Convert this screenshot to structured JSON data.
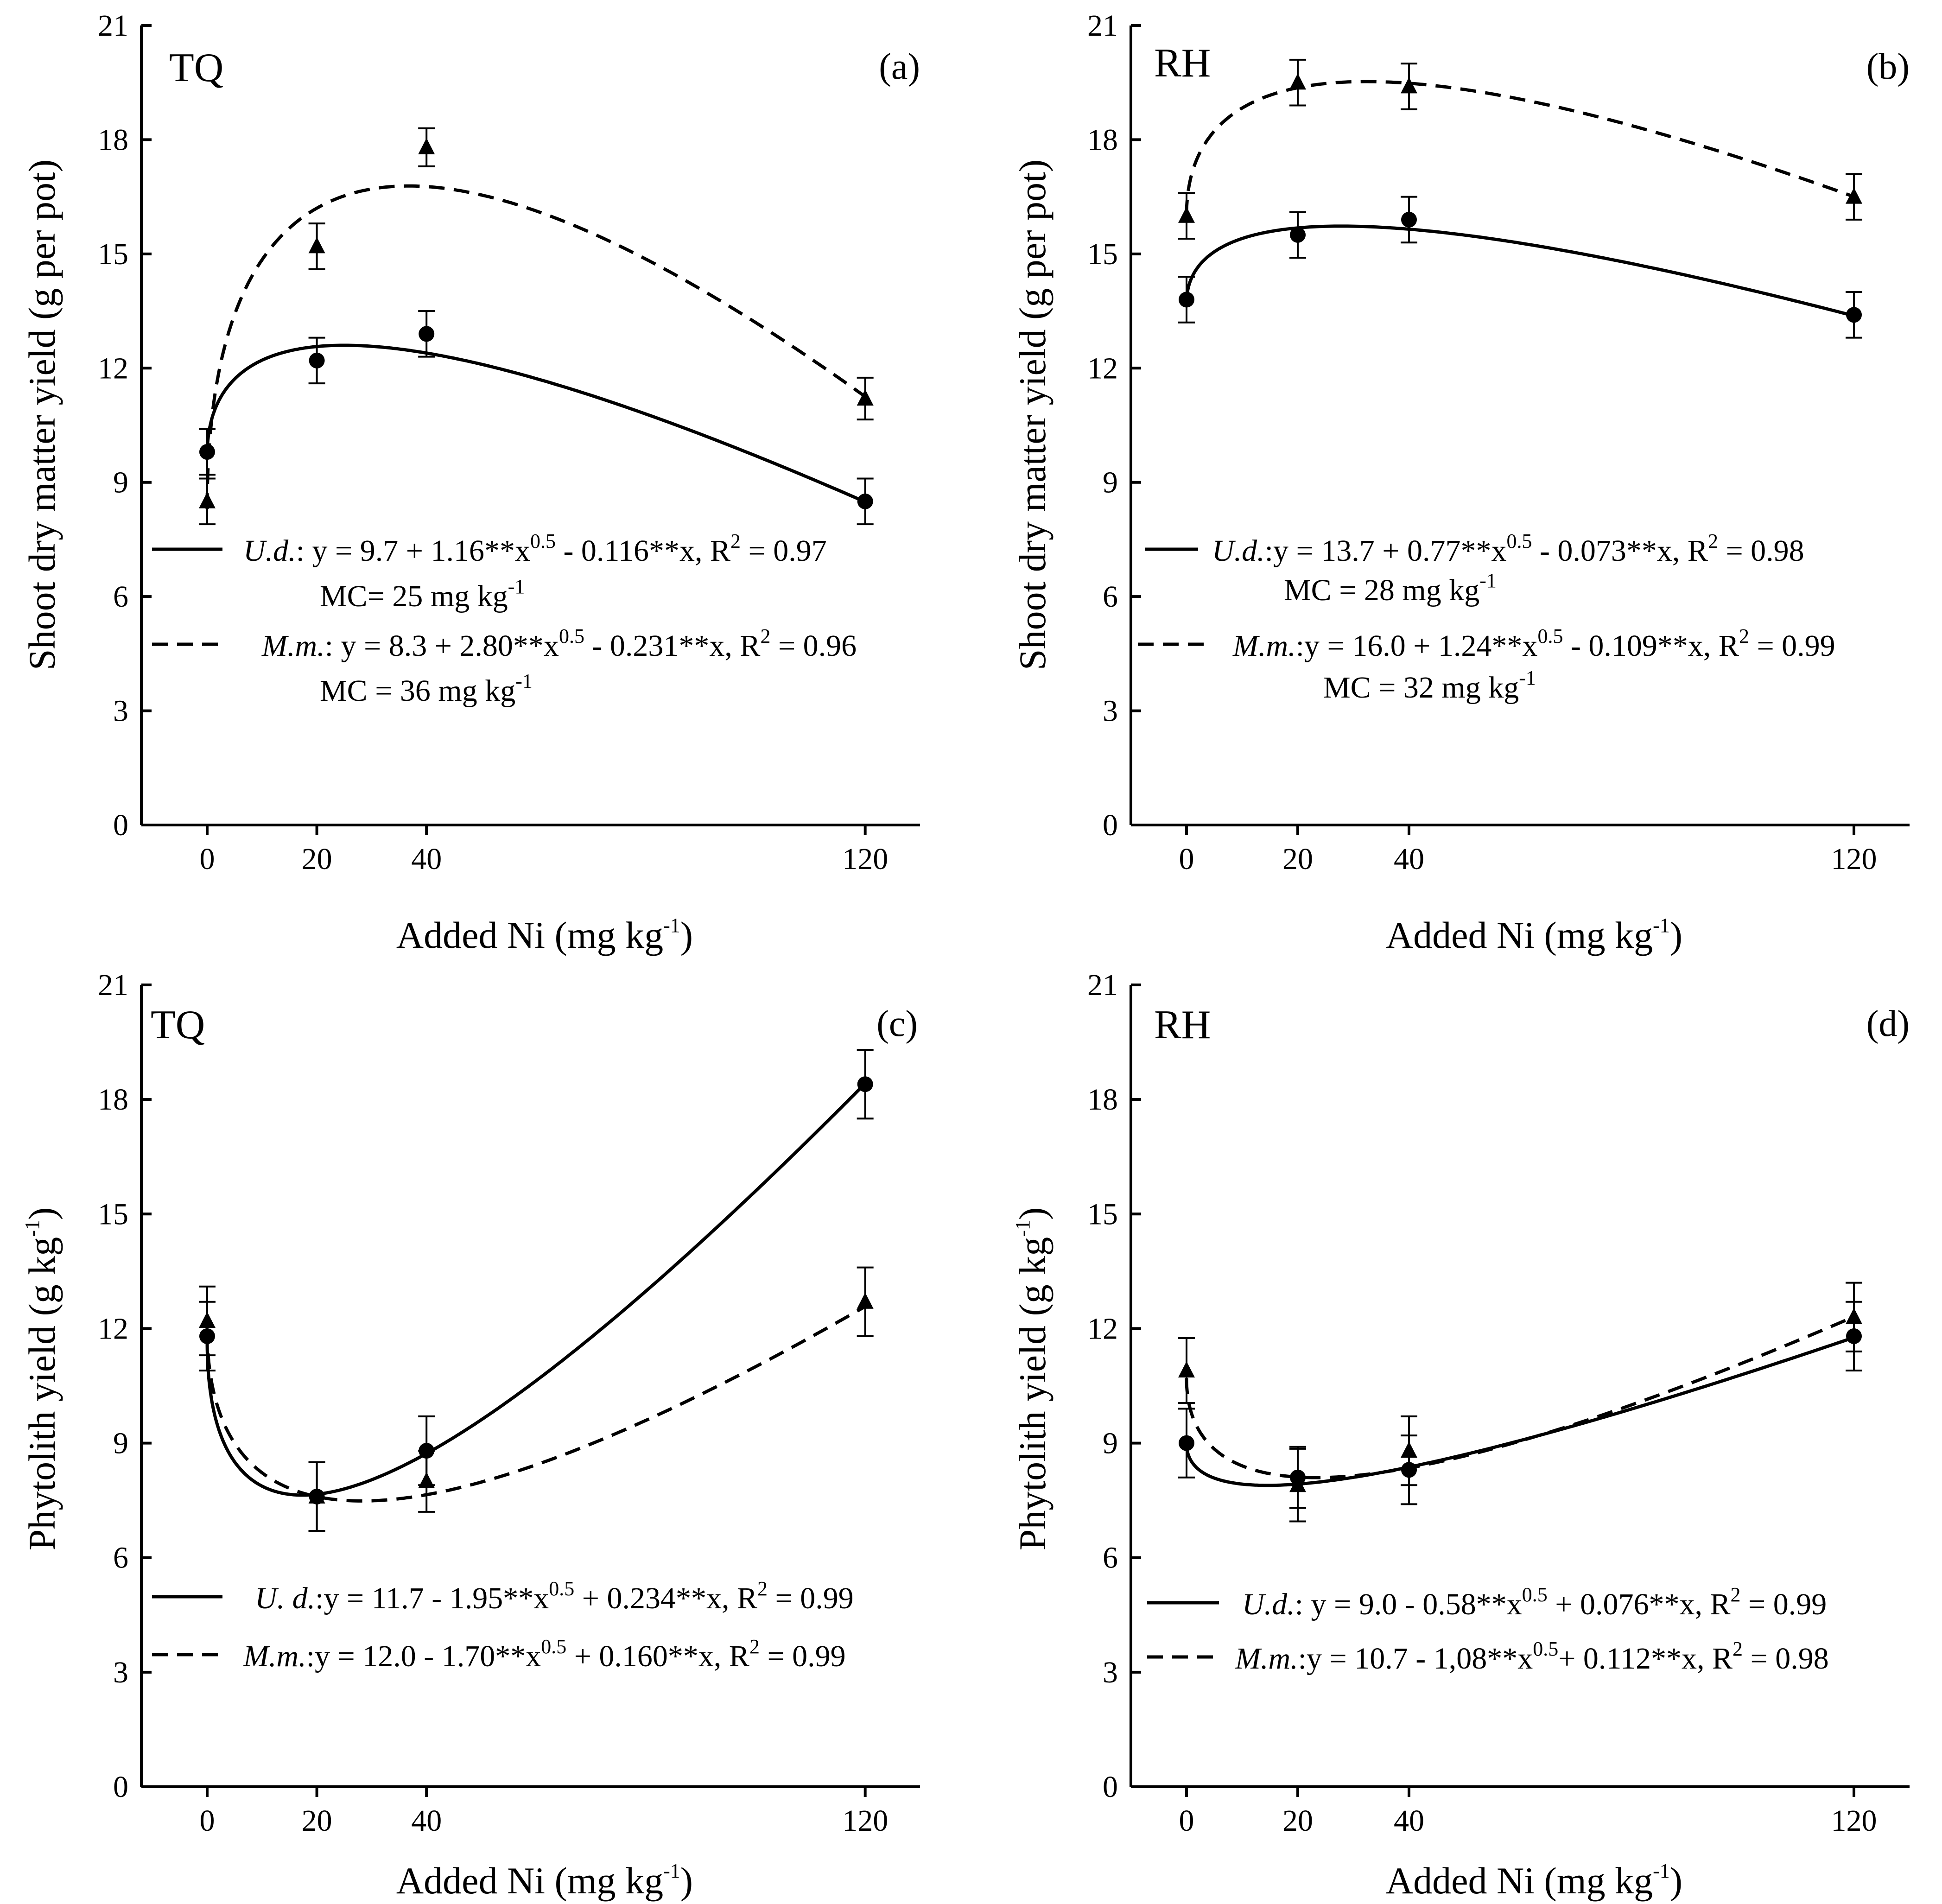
{
  "figure": {
    "panels": [
      {
        "id": "a",
        "panel_label": "(a)",
        "site_label": "TQ",
        "ylabel": "Shoot dry matter yield (g per pot)",
        "xlabel_main": "Added Ni (mg kg",
        "xlabel_sup": "-1",
        "xlabel_close": ")",
        "legend": [
          {
            "style": "solid",
            "species": "U.d.",
            "eq_a": ": y = 9.7 + 1.16**x",
            "eq_a_sup": "0.5",
            "eq_b": " - 0.116**x, R",
            "eq_b_sup": "2",
            "eq_c": " = 0.97",
            "mc_main": "MC= 25 mg kg",
            "mc_sup": "-1"
          },
          {
            "style": "dashed",
            "species": "M.m.",
            "eq_a": ": y = 8.3 + 2.80**x",
            "eq_a_sup": "0.5",
            "eq_b": " - 0.231**x, R",
            "eq_b_sup": "2",
            "eq_c": " = 0.96",
            "mc_main": "MC = 36 mg kg",
            "mc_sup": "-1"
          }
        ]
      },
      {
        "id": "b",
        "panel_label": "(b)",
        "site_label": "RH",
        "ylabel": "Shoot dry matter yield (g per pot)",
        "xlabel_main": "Added Ni (mg kg",
        "xlabel_sup": "-1",
        "xlabel_close": ")",
        "legend": [
          {
            "style": "solid",
            "species": "U.d.",
            "eq_a": ":y = 13.7 + 0.77**x",
            "eq_a_sup": "0.5",
            "eq_b": " - 0.073**x, R",
            "eq_b_sup": "2",
            "eq_c": " = 0.98",
            "mc_main": "MC = 28 mg kg",
            "mc_sup": "-1"
          },
          {
            "style": "dashed",
            "species": "M.m.",
            "eq_a": ":y = 16.0 + 1.24**x",
            "eq_a_sup": "0.5",
            "eq_b": " - 0.109**x, R",
            "eq_b_sup": "2",
            "eq_c": " = 0.99",
            "mc_main": "MC = 32 mg kg",
            "mc_sup": "-1"
          }
        ]
      },
      {
        "id": "c",
        "panel_label": "(c)",
        "site_label": "TQ",
        "ylabel_main": "Phytolith yield (g kg",
        "ylabel_sup": "-1",
        "ylabel_close": ")",
        "xlabel_main": "Added Ni (mg kg",
        "xlabel_sup": "-1",
        "xlabel_close": ")",
        "legend": [
          {
            "style": "solid",
            "species": "U. d.",
            "eq_a": ":y = 11.7 - 1.95**x",
            "eq_a_sup": "0.5",
            "eq_b": " + 0.234**x, R",
            "eq_b_sup": "2",
            "eq_c": " = 0.99"
          },
          {
            "style": "dashed",
            "species": "M.m.",
            "eq_a": ":y = 12.0 - 1.70**x",
            "eq_a_sup": "0.5",
            "eq_b": " + 0.160**x, R",
            "eq_b_sup": "2",
            "eq_c": " = 0.99"
          }
        ]
      },
      {
        "id": "d",
        "panel_label": "(d)",
        "site_label": "RH",
        "ylabel_main": "Phytolith yield (g kg",
        "ylabel_sup": "-1",
        "ylabel_close": ")",
        "xlabel_main": "Added Ni (mg kg",
        "xlabel_sup": "-1",
        "xlabel_close": ")",
        "legend": [
          {
            "style": "solid",
            "species": "U.d.",
            "eq_a": ": y = 9.0 - 0.58**x",
            "eq_a_sup": "0.5",
            "eq_b": " + 0.076**x, R",
            "eq_b_sup": "2",
            "eq_c": " = 0.99"
          },
          {
            "style": "dashed",
            "species": "M.m.",
            "eq_a": ":y = 10.7 - 1,08**x",
            "eq_a_sup": "0.5",
            "eq_b": "+ 0.112**x, R",
            "eq_b_sup": "2",
            "eq_c": " = 0.98"
          }
        ]
      }
    ]
  },
  "chart_data": [
    {
      "panel": "a",
      "type": "scatter",
      "site": "TQ",
      "title": "(a)",
      "xlabel": "Added Ni (mg kg-1)",
      "ylabel": "Shoot dry matter yield (g per pot)",
      "x_ticks": [
        0,
        20,
        40,
        120
      ],
      "y_ticks": [
        0,
        3,
        6,
        9,
        12,
        15,
        18,
        21
      ],
      "xlim": [
        -12,
        130
      ],
      "ylim": [
        0,
        21
      ],
      "series": [
        {
          "name": "U.d.",
          "marker": "circle",
          "line": "solid",
          "x": [
            0,
            20,
            40,
            120
          ],
          "y": [
            9.8,
            12.2,
            12.9,
            8.5
          ],
          "err": [
            0.6,
            0.6,
            0.6,
            0.6
          ],
          "fit": {
            "a": 9.7,
            "b": 1.16,
            "c": -0.116
          }
        },
        {
          "name": "M.m.",
          "marker": "triangle",
          "line": "dashed",
          "x": [
            0,
            20,
            40,
            120
          ],
          "y": [
            8.5,
            15.2,
            17.8,
            11.2
          ],
          "err": [
            0.6,
            0.6,
            0.5,
            0.55
          ],
          "fit": {
            "a": 8.3,
            "b": 2.8,
            "c": -0.231
          }
        }
      ]
    },
    {
      "panel": "b",
      "type": "scatter",
      "site": "RH",
      "title": "(b)",
      "xlabel": "Added Ni (mg kg-1)",
      "ylabel": "Shoot dry matter yield (g per pot)",
      "x_ticks": [
        0,
        20,
        40,
        120
      ],
      "y_ticks": [
        0,
        3,
        6,
        9,
        12,
        15,
        18,
        21
      ],
      "xlim": [
        -10,
        130
      ],
      "ylim": [
        0,
        21
      ],
      "series": [
        {
          "name": "U.d.",
          "marker": "circle",
          "line": "solid",
          "x": [
            0,
            20,
            40,
            120
          ],
          "y": [
            13.8,
            15.5,
            15.9,
            13.4
          ],
          "err": [
            0.6,
            0.6,
            0.6,
            0.6
          ],
          "fit": {
            "a": 13.7,
            "b": 0.77,
            "c": -0.073
          }
        },
        {
          "name": "M.m.",
          "marker": "triangle",
          "line": "dashed",
          "x": [
            0,
            20,
            40,
            120
          ],
          "y": [
            16.0,
            19.5,
            19.4,
            16.5
          ],
          "err": [
            0.6,
            0.6,
            0.6,
            0.6
          ],
          "fit": {
            "a": 16.0,
            "b": 1.24,
            "c": -0.109
          }
        }
      ]
    },
    {
      "panel": "c",
      "type": "scatter",
      "site": "TQ",
      "title": "(c)",
      "xlabel": "Added Ni (mg kg-1)",
      "ylabel": "Phytolith yield (g kg-1)",
      "x_ticks": [
        0,
        20,
        40,
        120
      ],
      "y_ticks": [
        0,
        3,
        6,
        9,
        12,
        15,
        18,
        21
      ],
      "xlim": [
        -12,
        130
      ],
      "ylim": [
        0,
        21
      ],
      "series": [
        {
          "name": "U. d.",
          "marker": "circle",
          "line": "solid",
          "x": [
            0,
            20,
            40,
            120
          ],
          "y": [
            11.8,
            7.6,
            8.8,
            18.4
          ],
          "err": [
            0.9,
            0.9,
            0.9,
            0.9
          ],
          "fit": {
            "a": 11.7,
            "b": -1.95,
            "c": 0.234
          }
        },
        {
          "name": "M.m.",
          "marker": "triangle",
          "line": "dashed",
          "x": [
            0,
            20,
            40,
            120
          ],
          "y": [
            12.2,
            7.6,
            8.0,
            12.7
          ],
          "err": [
            0.9,
            0.9,
            0.8,
            0.9
          ],
          "fit": {
            "a": 12.0,
            "b": -1.7,
            "c": 0.16
          }
        }
      ]
    },
    {
      "panel": "d",
      "type": "scatter",
      "site": "RH",
      "title": "(d)",
      "xlabel": "Added Ni (mg kg-1)",
      "ylabel": "Phytolith yield (g kg-1)",
      "x_ticks": [
        0,
        20,
        40,
        120
      ],
      "y_ticks": [
        0,
        3,
        6,
        9,
        12,
        15,
        18,
        21
      ],
      "xlim": [
        -10,
        130
      ],
      "ylim": [
        0,
        21
      ],
      "series": [
        {
          "name": "U.d.",
          "marker": "circle",
          "line": "solid",
          "x": [
            0,
            20,
            40,
            120
          ],
          "y": [
            9.0,
            8.1,
            8.3,
            11.8
          ],
          "err": [
            0.9,
            0.8,
            0.9,
            0.9
          ],
          "fit": {
            "a": 9.0,
            "b": -0.58,
            "c": 0.076
          }
        },
        {
          "name": "M.m.",
          "marker": "triangle",
          "line": "dashed",
          "x": [
            0,
            20,
            40,
            120
          ],
          "y": [
            10.9,
            7.9,
            8.8,
            12.3
          ],
          "err": [
            0.85,
            0.95,
            0.9,
            0.9
          ],
          "fit": {
            "a": 10.7,
            "b": -1.08,
            "c": 0.112
          }
        }
      ]
    }
  ]
}
